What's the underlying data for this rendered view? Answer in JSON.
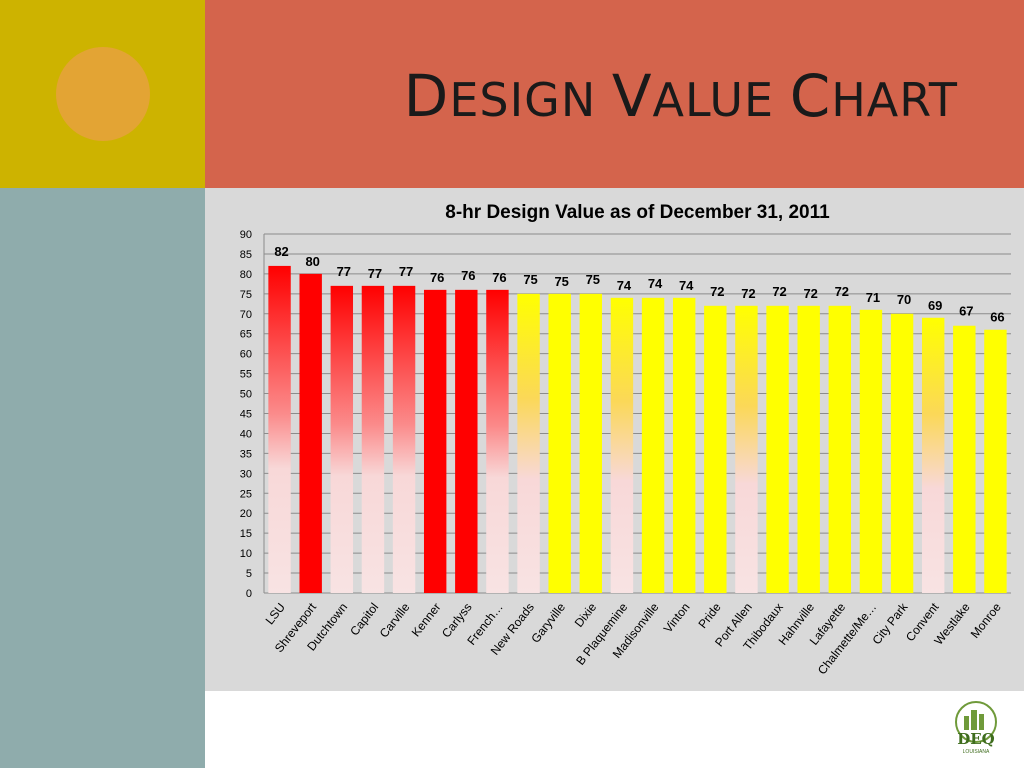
{
  "page": {
    "title_words": [
      {
        "first": "D",
        "rest": "ESIGN"
      },
      {
        "first": "V",
        "rest": "ALUE"
      },
      {
        "first": "C",
        "rest": "HART"
      }
    ]
  },
  "colors": {
    "header": "#d4644c",
    "olive": "#cdb300",
    "side": "#8facac",
    "bar_red": "#ff0000",
    "bar_yellow": "#ffff00",
    "panel": "#d9d9d9"
  },
  "logo": {
    "text": "DEQ",
    "subtext": "LOUISIANA"
  },
  "chart_data": {
    "type": "bar",
    "title": "8-hr Design Value as of December 31, 2011",
    "categories": [
      "LSU",
      "Shreveport",
      "Dutchtown",
      "Capitol",
      "Carville",
      "Kenner",
      "Carlyss",
      "French…",
      "New Roads",
      "Garyville",
      "Dixie",
      "B Plaquemine",
      "Madisonville",
      "Vinton",
      "Pride",
      "Port Allen",
      "Thibodaux",
      "Hahnville",
      "Lafayette",
      "Chalmette/Me…",
      "City Park",
      "Convent",
      "Westlake",
      "Monroe"
    ],
    "values": [
      82,
      80,
      77,
      77,
      77,
      76,
      76,
      76,
      75,
      75,
      75,
      74,
      74,
      74,
      72,
      72,
      72,
      72,
      72,
      71,
      70,
      69,
      67,
      66
    ],
    "bar_styles": [
      "red-gradient",
      "red",
      "red-gradient",
      "red-gradient",
      "red-gradient",
      "red",
      "red",
      "red-gradient",
      "yellow-gradient",
      "yellow",
      "yellow",
      "yellow-gradient",
      "yellow",
      "yellow",
      "yellow",
      "yellow-gradient",
      "yellow",
      "yellow",
      "yellow",
      "yellow",
      "yellow",
      "yellow-gradient",
      "yellow",
      "yellow"
    ],
    "ylim": [
      0,
      90
    ],
    "yticks": [
      0,
      5,
      10,
      15,
      20,
      25,
      30,
      35,
      40,
      45,
      50,
      55,
      60,
      65,
      70,
      75,
      80,
      85,
      90
    ],
    "grid": true,
    "legend": "none"
  }
}
